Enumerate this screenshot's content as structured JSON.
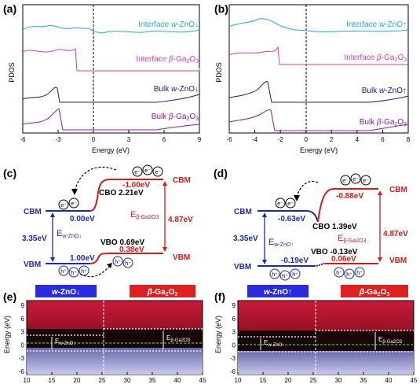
{
  "panels": {
    "a": {
      "label": "(a)"
    },
    "b": {
      "label": "(b)"
    },
    "c": {
      "label": "(c)"
    },
    "d": {
      "label": "(d)"
    },
    "e": {
      "label": "(e)"
    },
    "f": {
      "label": "(f)"
    }
  },
  "colors": {
    "cyan": "#2aa9d2",
    "magenta": "#d23fb8",
    "navy": "#1a1a8c",
    "purple": "#8a1f9a",
    "red": "#d41b1b",
    "blue": "#1d2ba8"
  },
  "chart_data": [
    {
      "type": "line",
      "panel": "a",
      "ylabel": "PDOS",
      "xlabel": "Energy (eV)",
      "xlim": [
        -6,
        9
      ],
      "xticks": [
        "-6",
        "-3",
        "0",
        "3",
        "6",
        "9"
      ],
      "series": [
        {
          "name": "Interface w-ZnO↓",
          "sub": "",
          "suffix": "↓",
          "prefix": "Interface ",
          "italic": "w",
          "rest": "-ZnO"
        },
        {
          "name": "Interface β-Ga2O3",
          "prefix": "Interface ",
          "italic": "β",
          "rest": "-Ga",
          "sub": "2",
          "rest2": "O",
          "sub2": "3"
        },
        {
          "name": "Bulk w-ZnO↓",
          "prefix": "Bulk ",
          "italic": "w",
          "rest": "-ZnO",
          "suffix": "↓"
        },
        {
          "name": "Bulk β-Ga2O3",
          "prefix": "Bulk ",
          "italic": "β",
          "rest": "-Ga",
          "sub": "2",
          "rest2": "O",
          "sub2": "3"
        }
      ]
    },
    {
      "type": "line",
      "panel": "b",
      "ylabel": "PDOS",
      "xlabel": "Energy (eV)",
      "xlim": [
        -6,
        8
      ],
      "xticks": [
        "-6",
        "-4",
        "-2",
        "0",
        "2",
        "4",
        "6",
        "8"
      ],
      "series": [
        {
          "name": "Interface w-ZnO↑",
          "prefix": "Interface ",
          "italic": "w",
          "rest": "-ZnO",
          "suffix": "↑"
        },
        {
          "name": "Interface β-Ga2O3",
          "prefix": "Interface ",
          "italic": "β",
          "rest": "-Ga",
          "sub": "2",
          "rest2": "O",
          "sub2": "3"
        },
        {
          "name": "Bulk w-ZnO↑",
          "prefix": "Bulk ",
          "italic": "w",
          "rest": "-ZnO",
          "suffix": "↑"
        },
        {
          "name": "Bulk β-Ga2O3",
          "prefix": "Bulk ",
          "italic": "β",
          "rest": "-Ga",
          "sub": "2",
          "rest2": "O",
          "sub2": "3"
        }
      ]
    },
    {
      "type": "heatmap",
      "panel": "e",
      "ylabel": "Energy (eV)",
      "xticks": [
        "10",
        "15",
        "20",
        "25",
        "30",
        "35",
        "40",
        "45"
      ],
      "yticks": [
        "9",
        "6",
        "3",
        "0",
        "-3",
        "-6"
      ],
      "regions": [
        "w-ZnO↓",
        "β-Ga2O3"
      ],
      "annotations": [
        "Ew-ZnO↓",
        "Eβ-Ga2O3"
      ]
    },
    {
      "type": "heatmap",
      "panel": "f",
      "ylabel": "Energy (eV)",
      "xticks": [
        "10",
        "15",
        "20",
        "25",
        "30",
        "35",
        "40",
        "45"
      ],
      "yticks": [
        "9",
        "6",
        "3",
        "0",
        "-3",
        "-6"
      ],
      "regions": [
        "w-ZnO↑",
        "β-Ga2O3"
      ],
      "annotations": [
        "Ew-ZnO↑",
        "Eβ-Ga2O3"
      ]
    }
  ],
  "band_c": {
    "cbm_left": "CBM",
    "vbm_left": "VBM",
    "cbm_right": "CBM",
    "vbm_right": "VBM",
    "cbm_left_val": "0.00eV",
    "cbm_right_val": "-1.00eV",
    "vbm_left_val": "1.00eV",
    "vbm_right_val": "0.38eV",
    "cbo": "CBO 2.21eV",
    "vbo": "VBO 0.69eV",
    "gap_left": "3.35eV",
    "gap_right": "4.87eV",
    "e_left_main": "E",
    "e_left_sub": "w-ZnO↓",
    "e_right_main": "E",
    "e_right_sub": "β-Ga2O3",
    "electron": "e⁻",
    "hole": "h⁺"
  },
  "band_d": {
    "cbm_left": "CBM",
    "vbm_left": "VBM",
    "cbm_right": "CBM",
    "vbm_right": "VBM",
    "cbm_left_val": "-0.63eV",
    "cbm_right_val": "-0.88eV",
    "vbm_left_val": "-0.19eV",
    "vbm_right_val": "0.06eV",
    "cbo": "CBO 1.39eV",
    "vbo": "VBO -0.13eV",
    "gap_left": "3.35eV",
    "gap_right": "4.87eV",
    "e_left_main": "E",
    "e_left_sub": "w-ZnO↑",
    "e_right_main": "E",
    "e_right_sub": "β-Ga2O3",
    "electron": "e⁻",
    "hole": "h⁺"
  }
}
